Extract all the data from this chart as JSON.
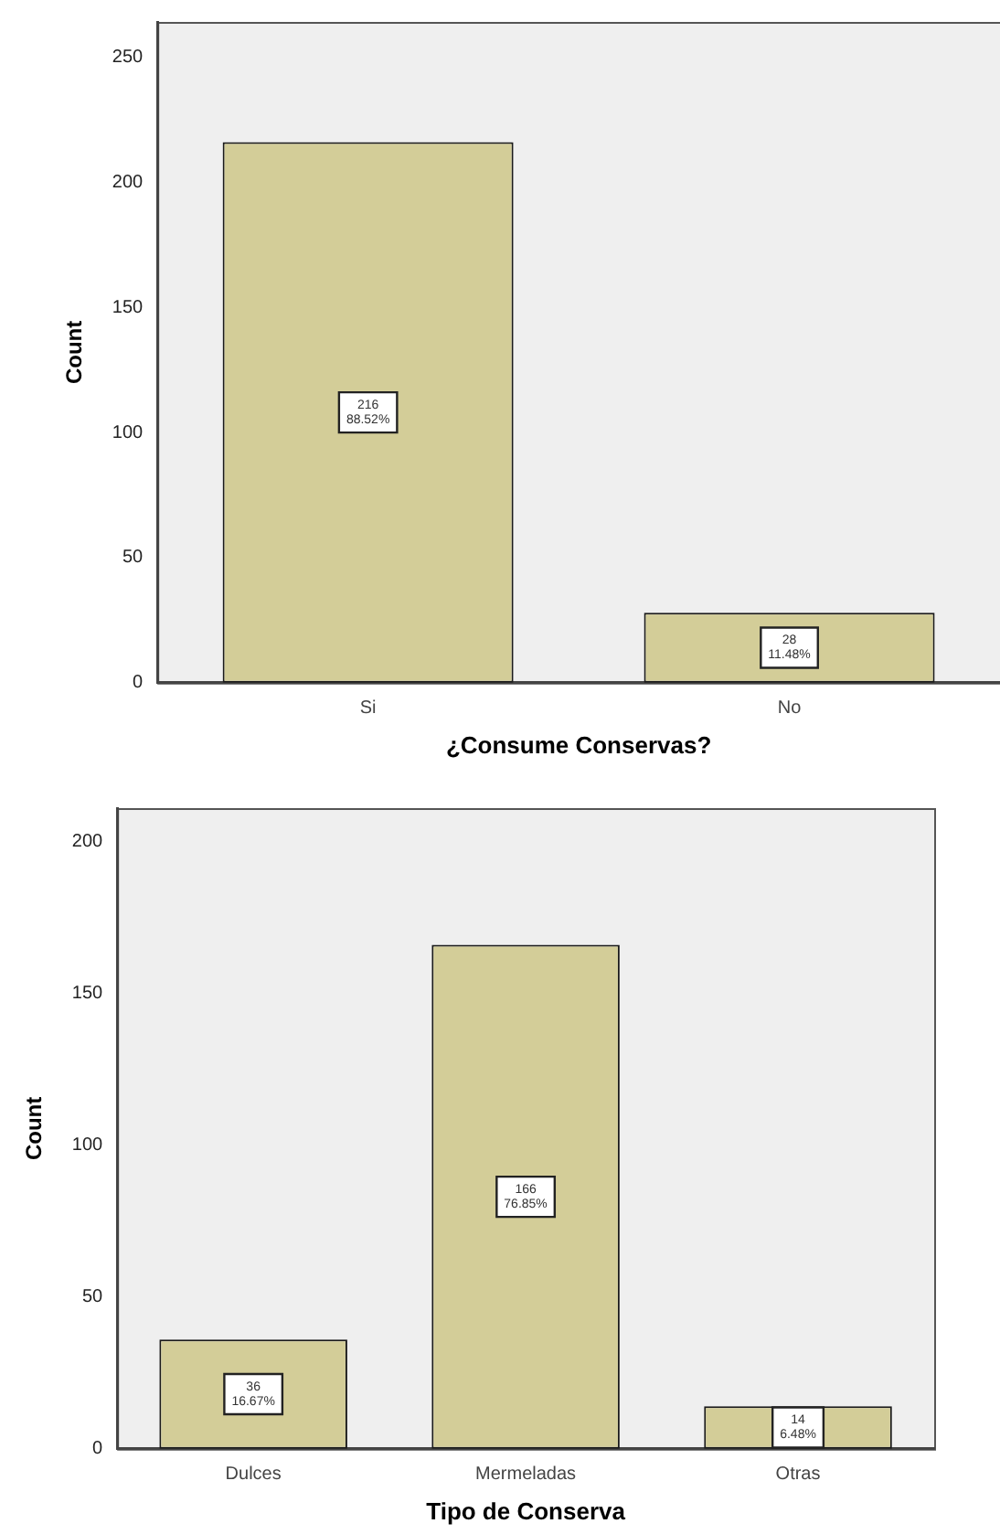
{
  "chart_data": [
    {
      "type": "bar",
      "xlabel": "¿Consume Conservas?",
      "ylabel": "Count",
      "categories": [
        "Si",
        "No"
      ],
      "values": [
        216,
        28
      ],
      "color": "#d3cd98",
      "value_labels": [
        "216\n88.52%",
        "28\n11.48%"
      ],
      "ylim": [
        0,
        264
      ],
      "yticks": [
        0,
        50,
        100,
        150,
        200,
        250
      ],
      "grid": false,
      "legend": false
    },
    {
      "type": "bar",
      "xlabel": "Tipo de Conserva",
      "ylabel": "Count",
      "categories": [
        "Dulces",
        "Mermeladas",
        "Otras"
      ],
      "values": [
        36,
        166,
        14
      ],
      "color": "#d3cd98",
      "value_labels": [
        "36\n16.67%",
        "166\n76.85%",
        "14\n6.48%"
      ],
      "ylim": [
        0,
        211
      ],
      "yticks": [
        0,
        50,
        100,
        150,
        200
      ],
      "grid": false,
      "legend": false
    }
  ]
}
